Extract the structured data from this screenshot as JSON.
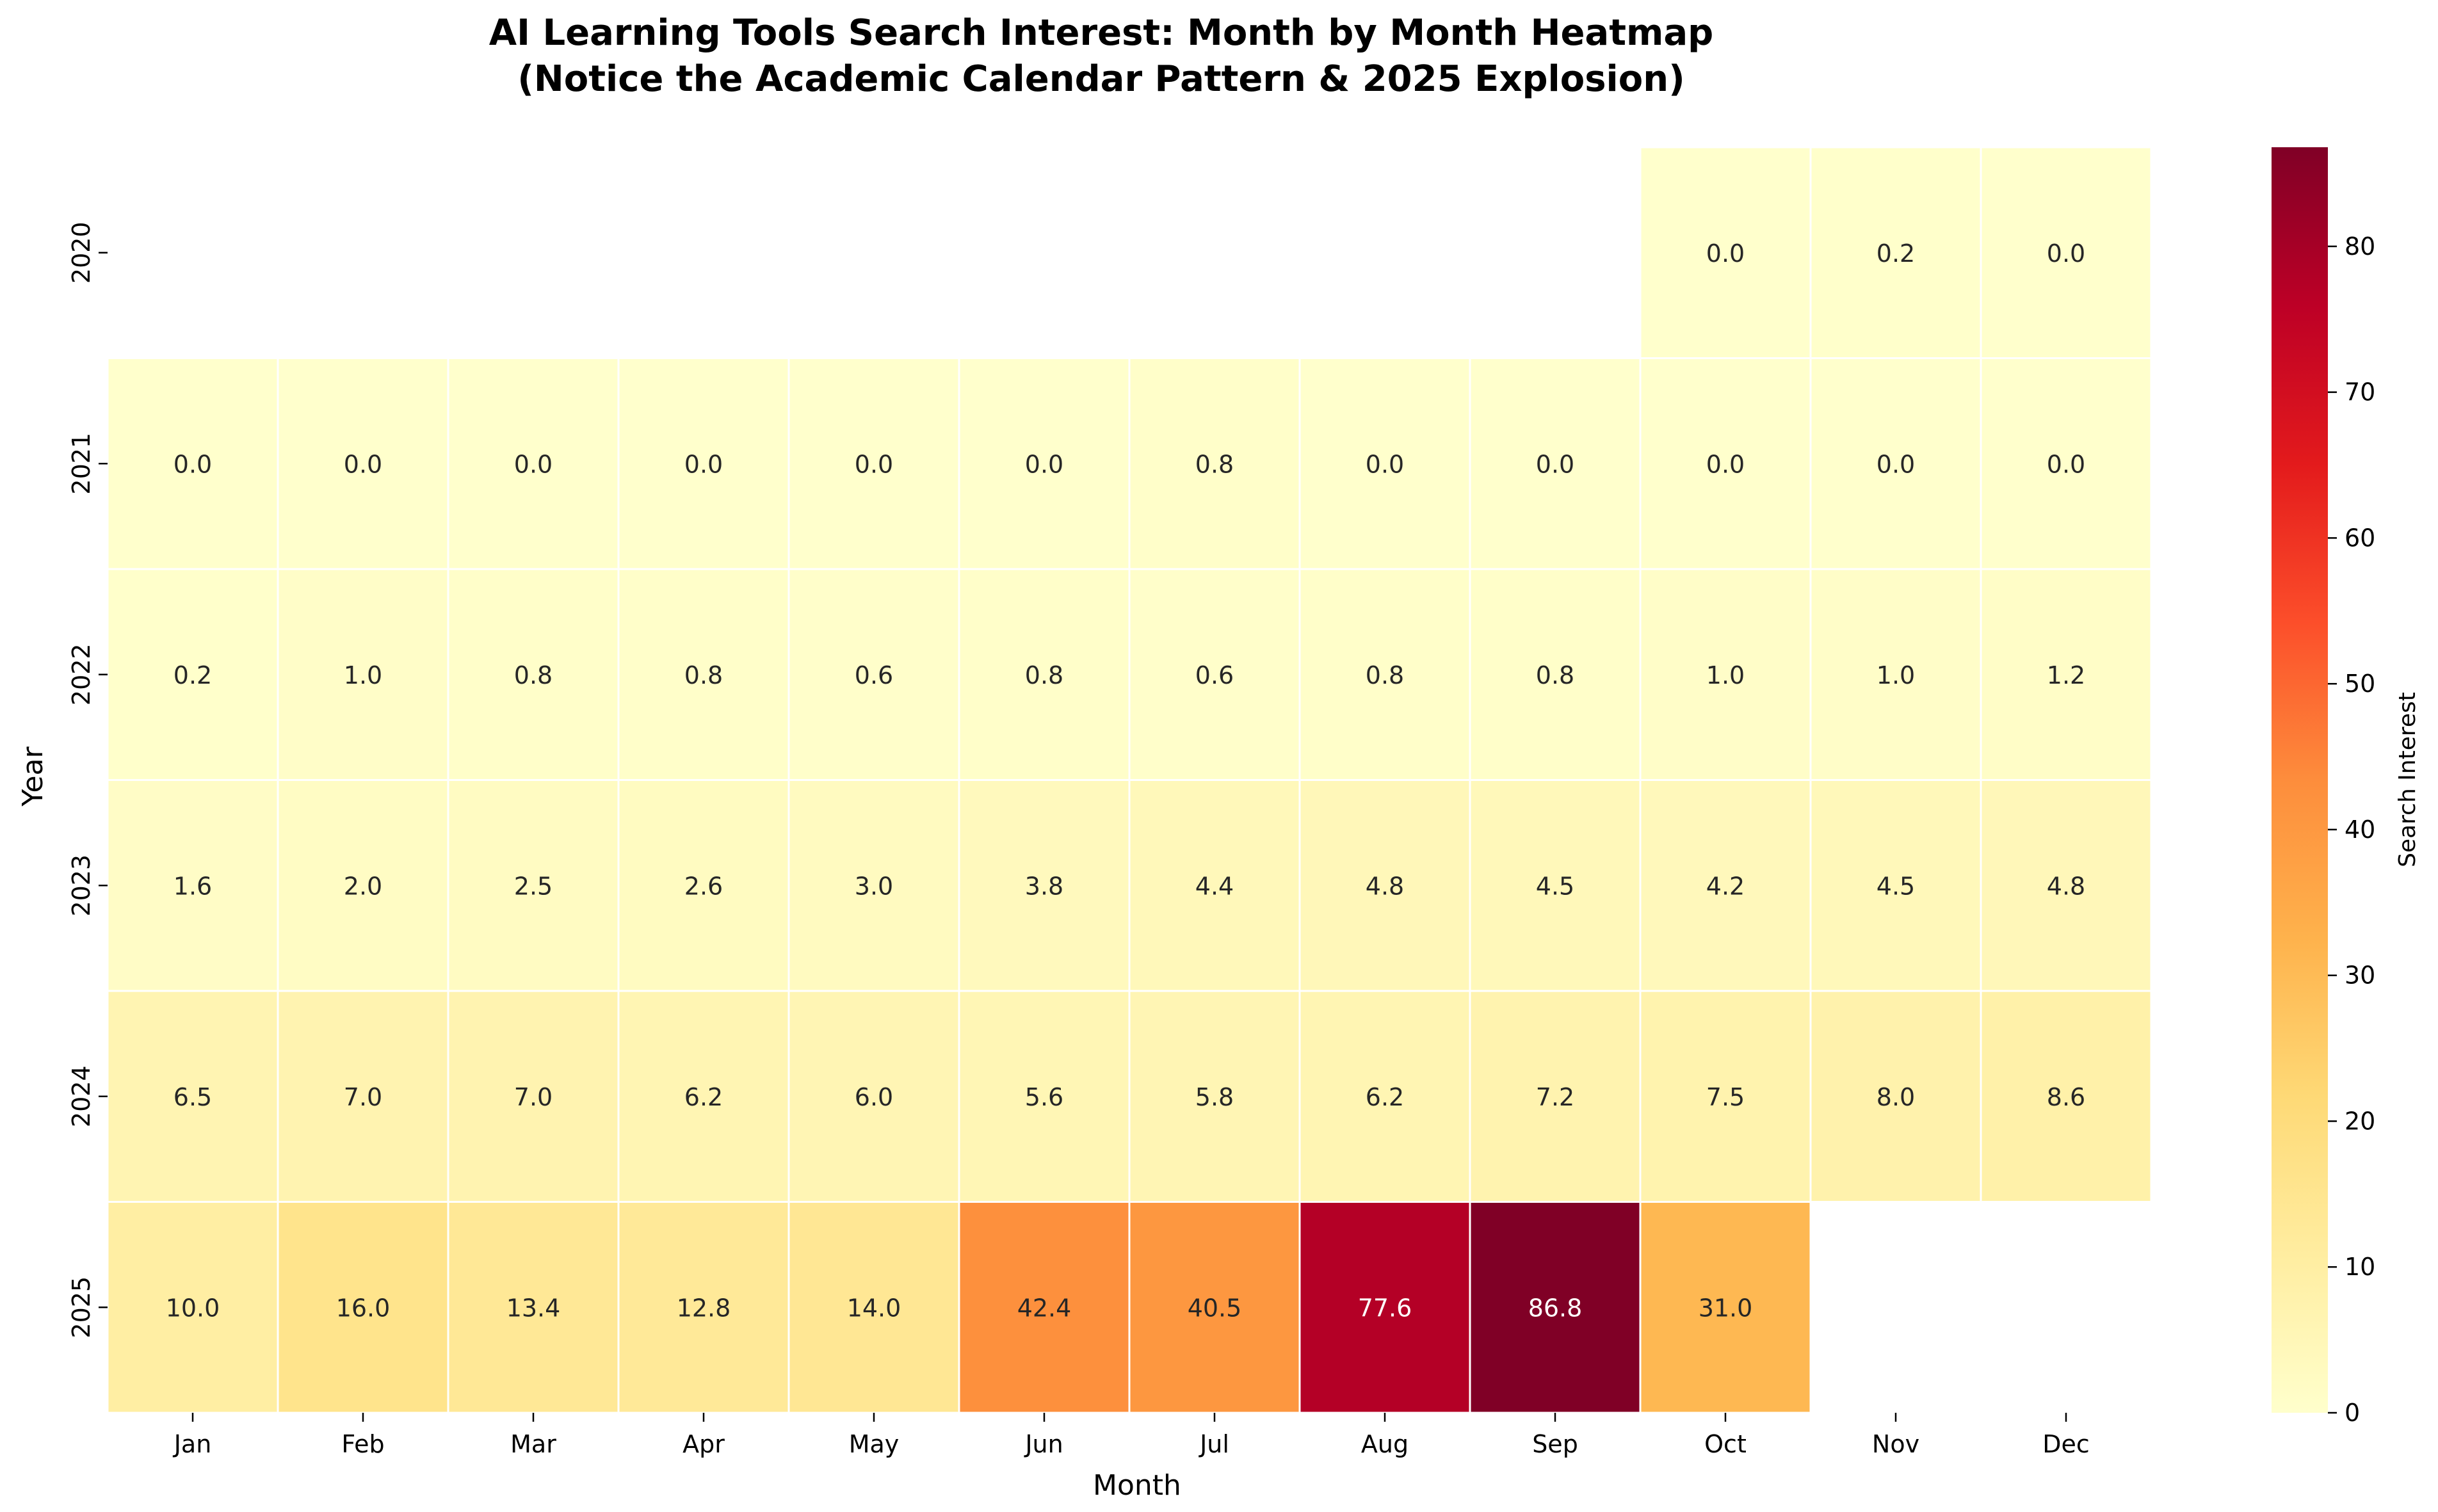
{
  "chart_data": {
    "type": "heatmap",
    "title_line1": "AI Learning Tools Search Interest: Month by Month Heatmap",
    "title_line2": "(Notice the Academic Calendar Pattern & 2025 Explosion)",
    "xlabel": "Month",
    "ylabel": "Year",
    "colorbar_label": "Search Interest",
    "months": [
      "Jan",
      "Feb",
      "Mar",
      "Apr",
      "May",
      "Jun",
      "Jul",
      "Aug",
      "Sep",
      "Oct",
      "Nov",
      "Dec"
    ],
    "years": [
      "2020",
      "2021",
      "2022",
      "2023",
      "2024",
      "2025"
    ],
    "values": [
      [
        null,
        null,
        null,
        null,
        null,
        null,
        null,
        null,
        null,
        0.0,
        0.2,
        0.0
      ],
      [
        0.0,
        0.0,
        0.0,
        0.0,
        0.0,
        0.0,
        0.8,
        0.0,
        0.0,
        0.0,
        0.0,
        0.0
      ],
      [
        0.2,
        1.0,
        0.8,
        0.8,
        0.6,
        0.8,
        0.6,
        0.8,
        0.8,
        1.0,
        1.0,
        1.2
      ],
      [
        1.6,
        2.0,
        2.5,
        2.6,
        3.0,
        3.8,
        4.4,
        4.8,
        4.5,
        4.2,
        4.5,
        4.8
      ],
      [
        6.5,
        7.0,
        7.0,
        6.2,
        6.0,
        5.6,
        5.8,
        6.2,
        7.2,
        7.5,
        8.0,
        8.6
      ],
      [
        10.0,
        16.0,
        13.4,
        12.8,
        14.0,
        42.4,
        40.5,
        77.6,
        86.8,
        31.0,
        null,
        null
      ]
    ],
    "color_range": [
      0,
      86.8
    ],
    "colorbar_ticks": [
      0,
      10,
      20,
      30,
      40,
      50,
      60,
      70,
      80
    ],
    "colormap": "YlOrRd",
    "colormap_stops": [
      "#ffffcc",
      "#ffeda0",
      "#fed976",
      "#feb24c",
      "#fd8d3c",
      "#fc4e2a",
      "#e31a1c",
      "#bd0026",
      "#800026"
    ],
    "grid": false,
    "legend": "colorbar-right"
  }
}
